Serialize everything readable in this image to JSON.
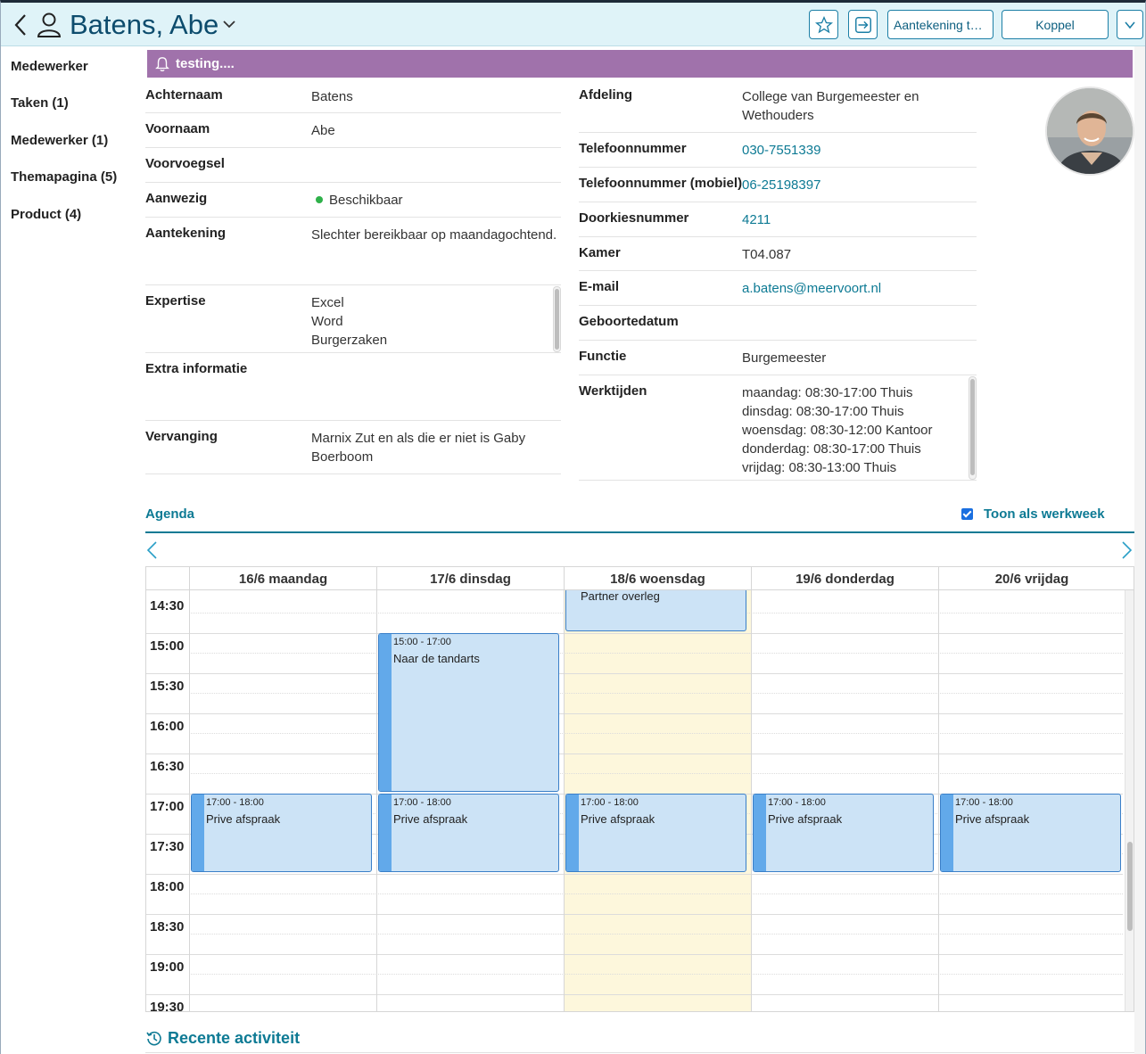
{
  "header": {
    "title": "Batens, Abe",
    "note_button": "Aantekening toevoegen",
    "koppel_button": "Koppel"
  },
  "sidebar": {
    "items": [
      {
        "label": "Medewerker"
      },
      {
        "label": "Taken (1)"
      },
      {
        "label": "Medewerker (1)"
      },
      {
        "label": "Themapagina (5)"
      },
      {
        "label": "Product (4)"
      }
    ]
  },
  "banner": {
    "text": "testing...."
  },
  "fields_left": {
    "achternaam": {
      "label": "Achternaam",
      "value": "Batens"
    },
    "voornaam": {
      "label": "Voornaam",
      "value": "Abe"
    },
    "voorvoegsel": {
      "label": "Voorvoegsel",
      "value": ""
    },
    "aanwezig": {
      "label": "Aanwezig",
      "value": "Beschikbaar",
      "status_color": "#2fb14a"
    },
    "aantekening": {
      "label": "Aantekening",
      "value": "Slechter bereikbaar op maandagochtend."
    },
    "expertise": {
      "label": "Expertise",
      "values": [
        "Excel",
        "Word",
        "Burgerzaken"
      ]
    },
    "extra": {
      "label": "Extra informatie",
      "value": ""
    },
    "vervanging": {
      "label": "Vervanging",
      "value": "Marnix Zut en als die er niet is Gaby Boerboom"
    }
  },
  "fields_right": {
    "afdeling": {
      "label": "Afdeling",
      "value": "College van Burgemeester en Wethouders"
    },
    "telefoon": {
      "label": "Telefoonnummer",
      "value": "030-7551339"
    },
    "mobiel": {
      "label": "Telefoonnummer (mobiel)",
      "value": "06-25198397"
    },
    "doorkies": {
      "label": "Doorkiesnummer",
      "value": "4211"
    },
    "kamer": {
      "label": "Kamer",
      "value": "T04.087"
    },
    "email": {
      "label": "E-mail",
      "value": "a.batens@meervoort.nl"
    },
    "geboorte": {
      "label": "Geboortedatum",
      "value": ""
    },
    "functie": {
      "label": "Functie",
      "value": "Burgemeester"
    },
    "werktijden": {
      "label": "Werktijden",
      "values": [
        "maandag: 08:30-17:00 Thuis",
        "dinsdag: 08:30-17:00 Thuis",
        "woensdag: 08:30-12:00 Kantoor",
        "donderdag: 08:30-17:00 Thuis",
        "vrijdag: 08:30-13:00 Thuis"
      ]
    }
  },
  "agenda": {
    "title": "Agenda",
    "werkweek_label": "Toon als werkweek",
    "werkweek_checked": true,
    "days": [
      "16/6 maandag",
      "17/6 dinsdag",
      "18/6 woensdag",
      "19/6 donderdag",
      "20/6 vrijdag"
    ],
    "today_index": 2,
    "times": [
      "14:30",
      "15:00",
      "15:30",
      "16:00",
      "16:30",
      "17:00",
      "17:30",
      "18:00",
      "18:30",
      "19:00",
      "19:30"
    ],
    "events": [
      {
        "day": 2,
        "time": "",
        "title": "Partner overleg"
      },
      {
        "day": 1,
        "time": "15:00 - 17:00",
        "title": "Naar de tandarts"
      },
      {
        "day": 0,
        "time": "17:00 - 18:00",
        "title": "Prive afspraak"
      },
      {
        "day": 1,
        "time": "17:00 - 18:00",
        "title": "Prive afspraak"
      },
      {
        "day": 2,
        "time": "17:00 - 18:00",
        "title": "Prive afspraak"
      },
      {
        "day": 3,
        "time": "17:00 - 18:00",
        "title": "Prive afspraak"
      },
      {
        "day": 4,
        "time": "17:00 - 18:00",
        "title": "Prive afspraak"
      }
    ]
  },
  "recent": {
    "title": "Recente activiteit"
  }
}
